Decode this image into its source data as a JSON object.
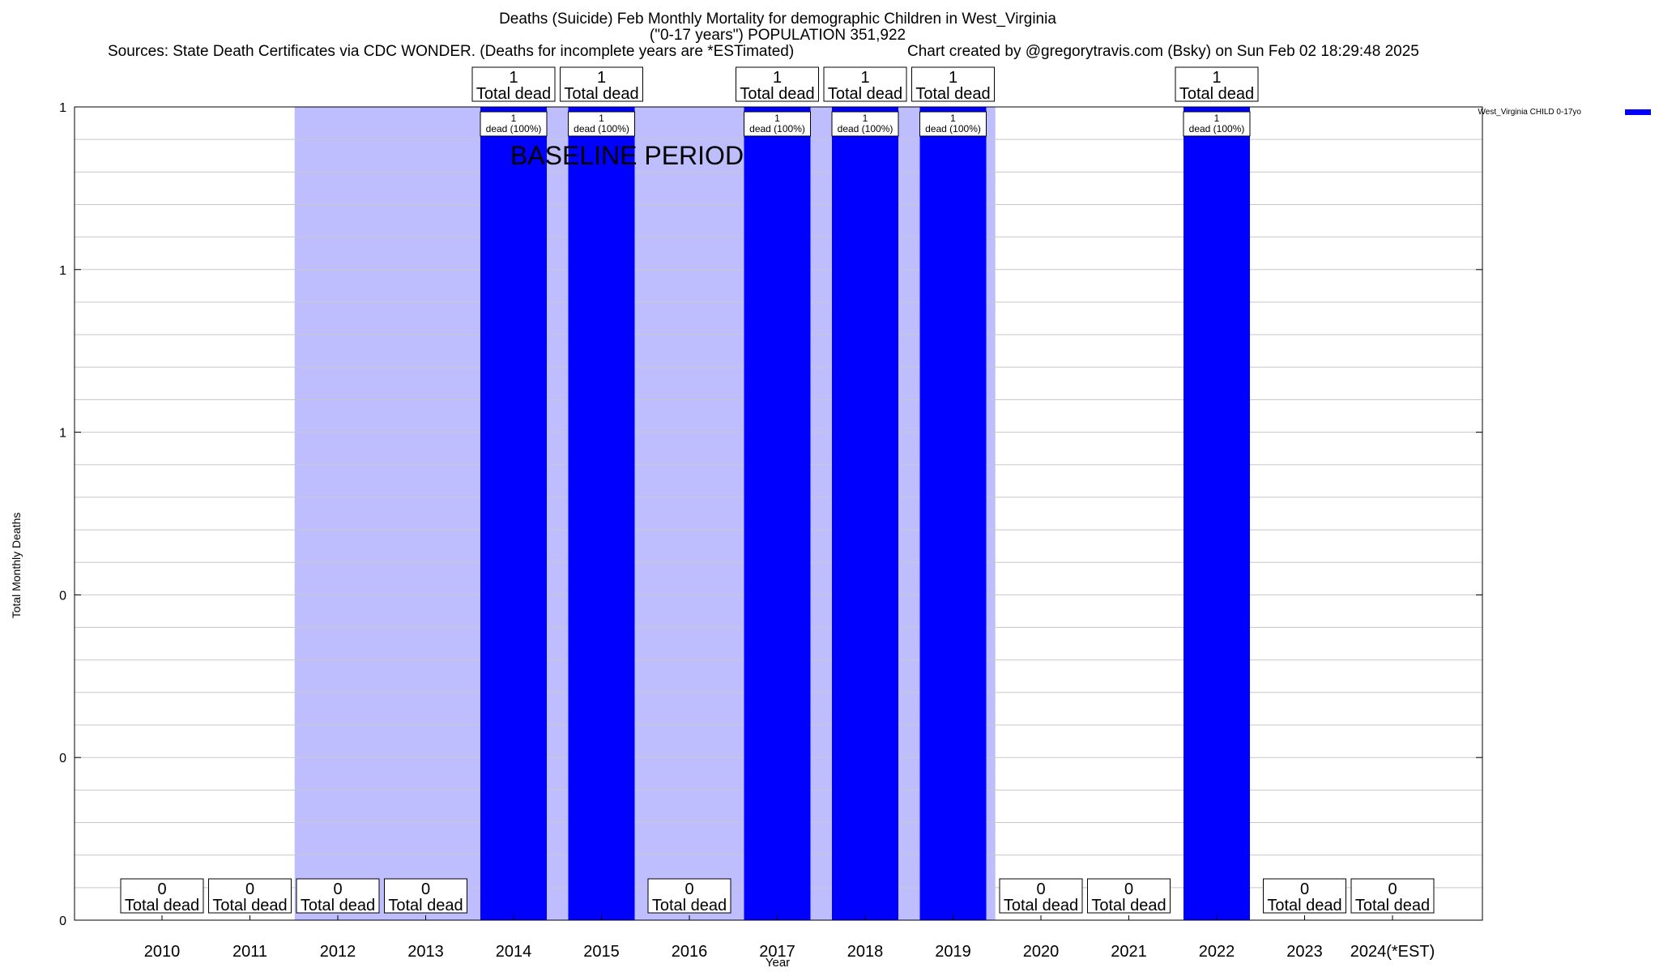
{
  "header": {
    "title": "Deaths (Suicide) Feb Monthly Mortality for demographic Children in West_Virginia",
    "subtitle": "(\"0-17 years\") POPULATION 351,922",
    "sources": "Sources: State Death Certificates via CDC WONDER. (Deaths for incomplete years are *ESTimated)",
    "credit": "Chart created by @gregorytravis.com (Bsky) on Sun Feb 02 18:29:48 2025"
  },
  "chart_data": {
    "type": "bar",
    "xlabel": "Year",
    "ylabel": "Total Monthly Deaths",
    "ylim": [
      0,
      1
    ],
    "y_tick_labels": [
      "0",
      "0",
      "0",
      "1",
      "1",
      "1"
    ],
    "categories": [
      "2010",
      "2011",
      "2012",
      "2013",
      "2014",
      "2015",
      "2016",
      "2017",
      "2018",
      "2019",
      "2020",
      "2021",
      "2022",
      "2023",
      "2024(*EST)"
    ],
    "series": [
      {
        "name": "West_Virginia CHILD 0-17yo",
        "color": "#0000ff",
        "values": [
          0,
          0,
          0,
          0,
          1,
          1,
          0,
          1,
          1,
          1,
          0,
          0,
          1,
          0,
          0
        ]
      }
    ],
    "total_labels": [
      "0",
      "0",
      "0",
      "0",
      "1",
      "1",
      "0",
      "1",
      "1",
      "1",
      "0",
      "0",
      "1",
      "0",
      "0"
    ],
    "total_suffix": "Total dead",
    "bar_labels": [
      "",
      "",
      "",
      "",
      "1",
      "1",
      "",
      "1",
      "1",
      "1",
      "",
      "",
      "1",
      "",
      ""
    ],
    "bar_label_suffix": "dead (100%)",
    "baseline": {
      "label": "BASELINE PERIOD",
      "start": "2012",
      "end": "2019",
      "color": "#bebeff"
    },
    "grid": true,
    "legend_position": "top-right"
  }
}
